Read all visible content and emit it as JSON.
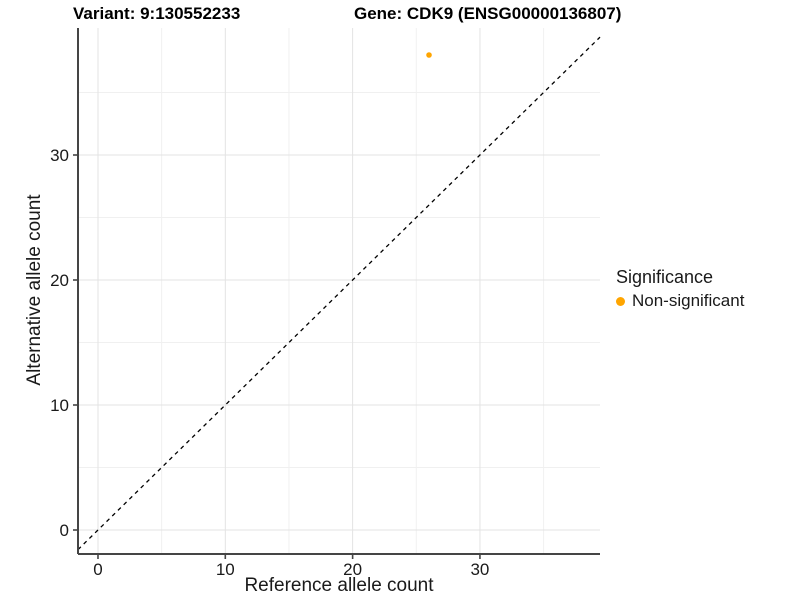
{
  "titles": {
    "variant": "Variant: 9:130552233",
    "gene": "Gene: CDK9 (ENSG00000136807)"
  },
  "chart_data": {
    "type": "scatter",
    "title": "Variant: 9:130552233    Gene: CDK9 (ENSG00000136807)",
    "xlabel": "Reference allele count",
    "ylabel": "Alternative allele count",
    "x_major_ticks": [
      0,
      10,
      20,
      30
    ],
    "y_major_ticks": [
      0,
      10,
      20,
      30
    ],
    "grid_step": 5,
    "grid_max": 35,
    "xlim": [
      -1.57,
      39.43
    ],
    "ylim": [
      -1.92,
      40.16
    ],
    "grid": true,
    "reference_line": {
      "type": "identity",
      "slope": 1,
      "intercept": 0,
      "style": "dashed",
      "color": "#000000"
    },
    "series": [
      {
        "name": "Non-significant",
        "color": "#FFA500",
        "points": [
          {
            "x": 26,
            "y": 38
          }
        ]
      }
    ],
    "legend": {
      "position": "right",
      "title": "Significance",
      "items": [
        {
          "label": "Non-significant",
          "color": "#FFA500"
        }
      ]
    },
    "colors": {
      "grid_major": "#e3e3e3",
      "grid_minor": "#f0f0f0",
      "axis_line": "#454545",
      "tick_text": "#1a1a1a"
    }
  }
}
